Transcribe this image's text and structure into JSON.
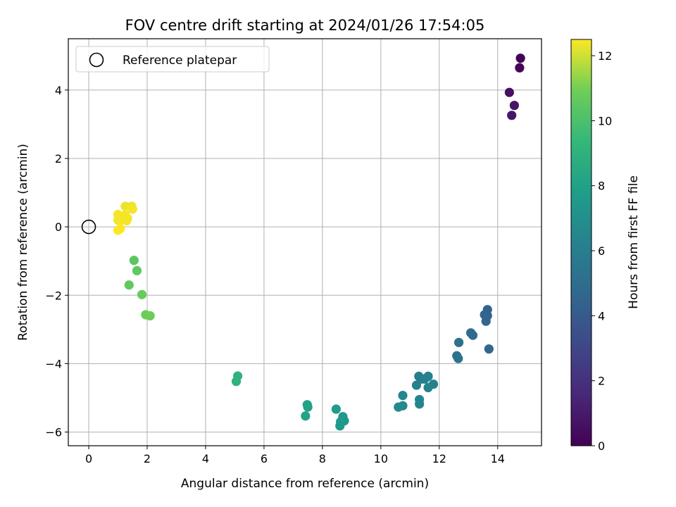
{
  "chart_data": {
    "type": "scatter",
    "title": "FOV centre drift starting at 2024/01/26 17:54:05",
    "xlabel": "Angular distance from reference (arcmin)",
    "ylabel": "Rotation from reference (arcmin)",
    "xlim": [
      -0.7,
      15.5
    ],
    "ylim": [
      -6.4,
      5.5
    ],
    "xticks": [
      0,
      2,
      4,
      6,
      8,
      10,
      12,
      14
    ],
    "yticks": [
      -6,
      -4,
      -2,
      0,
      2,
      4
    ],
    "grid": true,
    "legend": {
      "placement": "upper-left",
      "entries": [
        "Reference platepar"
      ]
    },
    "reference": {
      "x": 0,
      "y": 0
    },
    "colorbar": {
      "label": "Hours from first FF file",
      "range": [
        0,
        12.5
      ],
      "ticks": [
        0,
        2,
        4,
        6,
        8,
        10,
        12
      ],
      "colormap": "viridis"
    },
    "series": [
      {
        "points": [
          {
            "x": 14.78,
            "y": 4.93,
            "c": 0.1
          },
          {
            "x": 14.75,
            "y": 4.65,
            "c": 0.2
          },
          {
            "x": 14.4,
            "y": 3.93,
            "c": 0.6
          },
          {
            "x": 14.57,
            "y": 3.55,
            "c": 0.8
          },
          {
            "x": 14.48,
            "y": 3.26,
            "c": 0.9
          },
          {
            "x": 13.65,
            "y": -2.42,
            "c": 4.4
          },
          {
            "x": 13.55,
            "y": -2.57,
            "c": 4.5
          },
          {
            "x": 13.65,
            "y": -2.6,
            "c": 4.5
          },
          {
            "x": 13.6,
            "y": -2.76,
            "c": 4.6
          },
          {
            "x": 13.7,
            "y": -3.57,
            "c": 4.7
          },
          {
            "x": 13.08,
            "y": -3.1,
            "c": 5.0
          },
          {
            "x": 13.15,
            "y": -3.17,
            "c": 5.0
          },
          {
            "x": 12.67,
            "y": -3.38,
            "c": 5.2
          },
          {
            "x": 12.6,
            "y": -3.77,
            "c": 5.3
          },
          {
            "x": 12.65,
            "y": -3.85,
            "c": 5.4
          },
          {
            "x": 11.3,
            "y": -4.37,
            "c": 6.0
          },
          {
            "x": 11.38,
            "y": -4.45,
            "c": 6.0
          },
          {
            "x": 11.62,
            "y": -4.37,
            "c": 6.1
          },
          {
            "x": 11.5,
            "y": -4.45,
            "c": 6.1
          },
          {
            "x": 11.8,
            "y": -4.6,
            "c": 6.2
          },
          {
            "x": 11.22,
            "y": -4.63,
            "c": 6.2
          },
          {
            "x": 11.62,
            "y": -4.7,
            "c": 6.3
          },
          {
            "x": 11.32,
            "y": -5.05,
            "c": 6.4
          },
          {
            "x": 11.32,
            "y": -5.18,
            "c": 6.4
          },
          {
            "x": 10.75,
            "y": -4.93,
            "c": 6.6
          },
          {
            "x": 10.75,
            "y": -5.23,
            "c": 6.6
          },
          {
            "x": 10.6,
            "y": -5.27,
            "c": 6.7
          },
          {
            "x": 8.7,
            "y": -5.55,
            "c": 7.5
          },
          {
            "x": 8.75,
            "y": -5.67,
            "c": 7.5
          },
          {
            "x": 8.62,
            "y": -5.7,
            "c": 7.6
          },
          {
            "x": 8.6,
            "y": -5.82,
            "c": 7.6
          },
          {
            "x": 8.47,
            "y": -5.33,
            "c": 7.7
          },
          {
            "x": 7.48,
            "y": -5.2,
            "c": 8.0
          },
          {
            "x": 7.5,
            "y": -5.27,
            "c": 8.0
          },
          {
            "x": 7.42,
            "y": -5.53,
            "c": 8.1
          },
          {
            "x": 5.1,
            "y": -4.36,
            "c": 9.0
          },
          {
            "x": 5.05,
            "y": -4.52,
            "c": 9.0
          },
          {
            "x": 1.55,
            "y": -0.98,
            "c": 10.4
          },
          {
            "x": 1.65,
            "y": -1.28,
            "c": 10.5
          },
          {
            "x": 1.38,
            "y": -1.7,
            "c": 10.6
          },
          {
            "x": 1.82,
            "y": -1.98,
            "c": 10.7
          },
          {
            "x": 1.95,
            "y": -2.57,
            "c": 10.8
          },
          {
            "x": 2.1,
            "y": -2.6,
            "c": 10.9
          },
          {
            "x": 1.25,
            "y": 0.6,
            "c": 12.3
          },
          {
            "x": 1.47,
            "y": 0.6,
            "c": 12.3
          },
          {
            "x": 1.5,
            "y": 0.52,
            "c": 12.4
          },
          {
            "x": 1.0,
            "y": 0.36,
            "c": 12.4
          },
          {
            "x": 1.25,
            "y": 0.35,
            "c": 12.4
          },
          {
            "x": 1.33,
            "y": 0.25,
            "c": 12.4
          },
          {
            "x": 1.1,
            "y": 0.2,
            "c": 12.4
          },
          {
            "x": 1.3,
            "y": 0.18,
            "c": 12.4
          },
          {
            "x": 1.0,
            "y": 0.2,
            "c": 12.4
          },
          {
            "x": 1.08,
            "y": -0.05,
            "c": 12.5
          },
          {
            "x": 1.0,
            "y": -0.1,
            "c": 12.5
          }
        ]
      }
    ]
  }
}
